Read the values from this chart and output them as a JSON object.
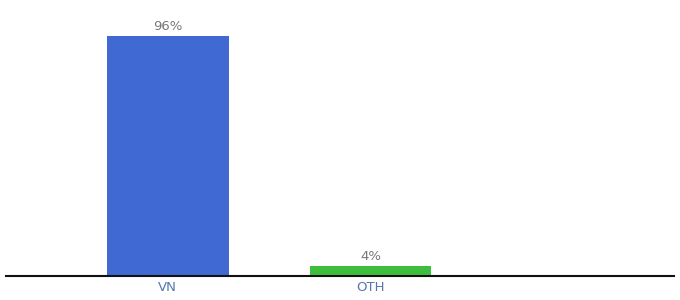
{
  "categories": [
    "VN",
    "OTH"
  ],
  "values": [
    96,
    4
  ],
  "bar_colors": [
    "#4169d4",
    "#3dbf3d"
  ],
  "labels": [
    "96%",
    "4%"
  ],
  "background_color": "#ffffff",
  "xlim": [
    -0.8,
    2.5
  ],
  "ylim": [
    0,
    108
  ],
  "bar_width": 0.6,
  "label_fontsize": 9.5,
  "tick_fontsize": 9.5,
  "bottom_line_color": "#111111",
  "tick_color": "#5577aa"
}
